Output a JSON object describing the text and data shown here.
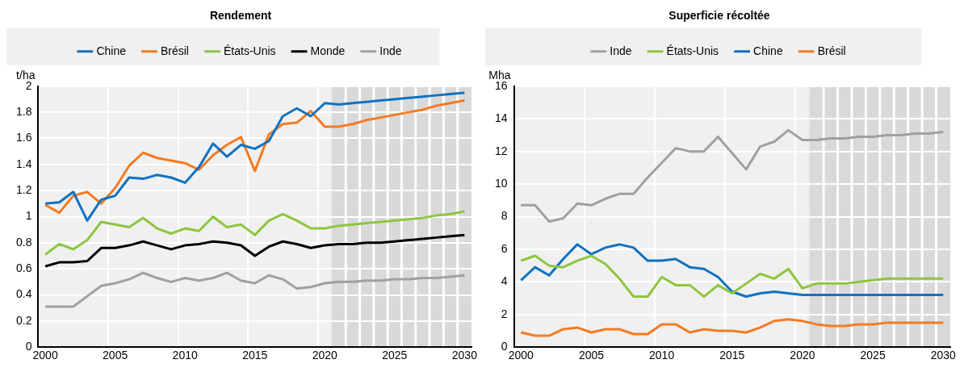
{
  "chart_data": [
    {
      "type": "line",
      "title": "Rendement",
      "ylabel": "t/ha",
      "x": [
        2000,
        2001,
        2002,
        2003,
        2004,
        2005,
        2006,
        2007,
        2008,
        2009,
        2010,
        2011,
        2012,
        2013,
        2014,
        2015,
        2016,
        2017,
        2018,
        2019,
        2020,
        2021,
        2022,
        2023,
        2024,
        2025,
        2026,
        2027,
        2028,
        2029,
        2030
      ],
      "xlim": [
        1999.5,
        2030.5
      ],
      "xticks": [
        2000,
        {
          "value": 2004.5,
          "label": null
        },
        2005,
        {
          "value": 2009.5,
          "label": null
        },
        2010,
        {
          "value": 2014.5,
          "label": null
        },
        2015,
        {
          "value": 2019.5,
          "label": null
        },
        2020,
        {
          "value": 2024.5,
          "label": null
        },
        2025,
        {
          "value": 2029.5,
          "label": null
        },
        2030
      ],
      "ylim": [
        0,
        2
      ],
      "yticks": [
        0,
        0.2,
        0.4,
        0.6,
        0.8,
        1,
        1.2,
        1.4,
        1.6,
        1.8,
        2
      ],
      "series": [
        {
          "name": "Chine",
          "color": "#0f72c2",
          "values": [
            1.1,
            1.11,
            1.19,
            0.97,
            1.13,
            1.16,
            1.3,
            1.29,
            1.32,
            1.3,
            1.26,
            1.38,
            1.56,
            1.46,
            1.55,
            1.52,
            1.58,
            1.77,
            1.83,
            1.77,
            1.87,
            1.86,
            1.87,
            1.88,
            1.89,
            1.9,
            1.91,
            1.92,
            1.93,
            1.94,
            1.95
          ]
        },
        {
          "name": "Brésil",
          "color": "#f47b20",
          "values": [
            1.09,
            1.03,
            1.16,
            1.19,
            1.1,
            1.22,
            1.39,
            1.49,
            1.45,
            1.43,
            1.41,
            1.36,
            1.47,
            1.55,
            1.61,
            1.35,
            1.63,
            1.71,
            1.72,
            1.81,
            1.69,
            1.69,
            1.71,
            1.74,
            1.76,
            1.78,
            1.8,
            1.82,
            1.85,
            1.87,
            1.89
          ]
        },
        {
          "name": "États-Unis",
          "color": "#8dc63f",
          "values": [
            0.71,
            0.79,
            0.75,
            0.82,
            0.96,
            0.94,
            0.92,
            0.99,
            0.91,
            0.87,
            0.91,
            0.89,
            1.0,
            0.92,
            0.94,
            0.86,
            0.97,
            1.02,
            0.97,
            0.91,
            0.91,
            0.93,
            0.94,
            0.95,
            0.96,
            0.97,
            0.98,
            0.99,
            1.01,
            1.02,
            1.04
          ]
        },
        {
          "name": "Monde",
          "color": "#000000",
          "values": [
            0.62,
            0.65,
            0.65,
            0.66,
            0.76,
            0.76,
            0.78,
            0.81,
            0.78,
            0.75,
            0.78,
            0.79,
            0.81,
            0.8,
            0.78,
            0.7,
            0.77,
            0.81,
            0.79,
            0.76,
            0.78,
            0.79,
            0.79,
            0.8,
            0.8,
            0.81,
            0.82,
            0.83,
            0.84,
            0.85,
            0.86
          ]
        },
        {
          "name": "Inde",
          "color": "#a0a0a0",
          "values": [
            0.31,
            0.31,
            0.31,
            0.39,
            0.47,
            0.49,
            0.52,
            0.57,
            0.53,
            0.5,
            0.53,
            0.51,
            0.53,
            0.57,
            0.51,
            0.49,
            0.55,
            0.52,
            0.45,
            0.46,
            0.49,
            0.5,
            0.5,
            0.51,
            0.51,
            0.52,
            0.52,
            0.53,
            0.53,
            0.54,
            0.55
          ]
        }
      ],
      "bands": [
        {
          "axis": "x",
          "from": 2020.5,
          "to": 2030.5,
          "color": "#d9d9d9"
        }
      ],
      "grid": true,
      "legend": "top",
      "marker": "none"
    },
    {
      "type": "line",
      "title": "Superficie récoltée",
      "ylabel": "Mha",
      "x": [
        2000,
        2001,
        2002,
        2003,
        2004,
        2005,
        2006,
        2007,
        2008,
        2009,
        2010,
        2011,
        2012,
        2013,
        2014,
        2015,
        2016,
        2017,
        2018,
        2019,
        2020,
        2021,
        2022,
        2023,
        2024,
        2025,
        2026,
        2027,
        2028,
        2029,
        2030
      ],
      "xlim": [
        1999.5,
        2030.5
      ],
      "xticks": [
        2000,
        {
          "value": 2004.5,
          "label": null
        },
        2005,
        {
          "value": 2009.5,
          "label": null
        },
        2010,
        {
          "value": 2014.5,
          "label": null
        },
        2015,
        {
          "value": 2019.5,
          "label": null
        },
        2020,
        {
          "value": 2024.5,
          "label": null
        },
        2025,
        {
          "value": 2029.5,
          "label": null
        },
        2030
      ],
      "ylim": [
        0,
        16
      ],
      "yticks": [
        0,
        2,
        4,
        6,
        8,
        10,
        12,
        14,
        16
      ],
      "series": [
        {
          "name": "Inde",
          "color": "#a0a0a0",
          "values": [
            8.7,
            8.7,
            7.7,
            7.9,
            8.8,
            8.7,
            9.1,
            9.4,
            9.4,
            10.4,
            11.3,
            12.2,
            12.0,
            12.0,
            12.9,
            11.9,
            10.9,
            12.3,
            12.6,
            13.3,
            12.7,
            12.7,
            12.8,
            12.8,
            12.9,
            12.9,
            13.0,
            13.0,
            13.1,
            13.1,
            13.2
          ]
        },
        {
          "name": "États-Unis",
          "color": "#8dc63f",
          "values": [
            5.3,
            5.6,
            5.0,
            4.9,
            5.3,
            5.6,
            5.1,
            4.2,
            3.1,
            3.1,
            4.3,
            3.8,
            3.8,
            3.1,
            3.8,
            3.3,
            3.9,
            4.5,
            4.2,
            4.8,
            3.6,
            3.9,
            3.9,
            3.9,
            4.0,
            4.1,
            4.2,
            4.2,
            4.2,
            4.2,
            4.2
          ]
        },
        {
          "name": "Chine",
          "color": "#0f72c2",
          "values": [
            4.1,
            4.9,
            4.4,
            5.4,
            6.3,
            5.7,
            6.1,
            6.3,
            6.1,
            5.3,
            5.3,
            5.4,
            4.9,
            4.8,
            4.3,
            3.4,
            3.1,
            3.3,
            3.4,
            3.3,
            3.2,
            3.2,
            3.2,
            3.2,
            3.2,
            3.2,
            3.2,
            3.2,
            3.2,
            3.2,
            3.2
          ]
        },
        {
          "name": "Brésil",
          "color": "#f47b20",
          "values": [
            0.9,
            0.7,
            0.7,
            1.1,
            1.2,
            0.9,
            1.1,
            1.1,
            0.8,
            0.8,
            1.4,
            1.4,
            0.9,
            1.1,
            1.0,
            1.0,
            0.9,
            1.2,
            1.6,
            1.7,
            1.6,
            1.4,
            1.3,
            1.3,
            1.4,
            1.4,
            1.5,
            1.5,
            1.5,
            1.5,
            1.5
          ]
        }
      ],
      "bands": [
        {
          "axis": "x",
          "from": 2020.5,
          "to": 2030.5,
          "color": "#d9d9d9"
        }
      ],
      "grid": true,
      "legend": "top",
      "marker": "none"
    }
  ]
}
